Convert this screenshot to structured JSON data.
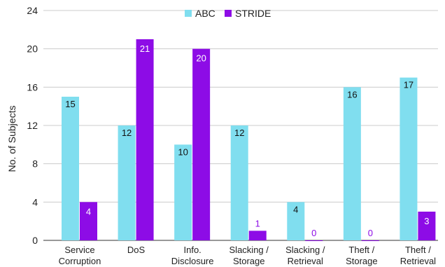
{
  "chart_data": {
    "type": "bar",
    "title": "",
    "xlabel": "",
    "ylabel": "No. of Subjects",
    "ylim": [
      0,
      24
    ],
    "yticks": [
      0,
      4,
      8,
      12,
      16,
      20,
      24
    ],
    "grid": "horizontal",
    "legend_position": "top-center",
    "categories": [
      [
        "Service",
        "Corruption"
      ],
      [
        "DoS"
      ],
      [
        "Info.",
        "Disclosure"
      ],
      [
        "Slacking /",
        "Storage"
      ],
      [
        "Slacking /",
        "Retrieval"
      ],
      [
        "Theft /",
        "Storage"
      ],
      [
        "Theft /",
        "Retrieval"
      ]
    ],
    "series": [
      {
        "name": "ABC",
        "color": "#80deef",
        "label_color": "#111111",
        "values": [
          15,
          12,
          10,
          12,
          4,
          16,
          17
        ]
      },
      {
        "name": "STRIDE",
        "color": "#8d0ce6",
        "label_color": "#8d0ce6",
        "inside_label_color": "#ffffff",
        "values": [
          4,
          21,
          20,
          1,
          0,
          0,
          3
        ]
      }
    ]
  }
}
